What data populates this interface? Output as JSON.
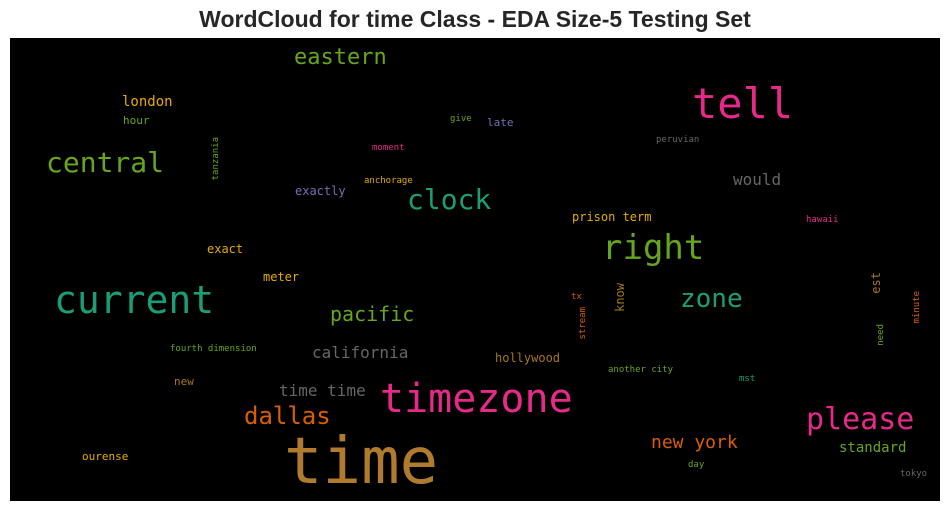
{
  "chart_data": {
    "type": "wordcloud",
    "title": "WordCloud for time Class - EDA Size-5 Testing Set",
    "background": "#000000",
    "words": [
      {
        "text": "time",
        "color": "#b07b2c",
        "orientation": "horizontal"
      },
      {
        "text": "current",
        "color": "#1b9e77",
        "orientation": "horizontal"
      },
      {
        "text": "timezone",
        "color": "#e7298a",
        "orientation": "horizontal"
      },
      {
        "text": "tell",
        "color": "#e7298a",
        "orientation": "horizontal"
      },
      {
        "text": "right",
        "color": "#66a61e",
        "orientation": "horizontal"
      },
      {
        "text": "please",
        "color": "#e7298a",
        "orientation": "horizontal"
      },
      {
        "text": "central",
        "color": "#66a61e",
        "orientation": "horizontal"
      },
      {
        "text": "clock",
        "color": "#1b9e77",
        "orientation": "horizontal"
      },
      {
        "text": "zone",
        "color": "#1b9e77",
        "orientation": "horizontal"
      },
      {
        "text": "dallas",
        "color": "#d95f02",
        "orientation": "horizontal"
      },
      {
        "text": "eastern",
        "color": "#66a61e",
        "orientation": "horizontal"
      },
      {
        "text": "pacific",
        "color": "#66a61e",
        "orientation": "horizontal"
      },
      {
        "text": "new york",
        "color": "#d95f02",
        "orientation": "horizontal"
      },
      {
        "text": "california",
        "color": "#666666",
        "orientation": "horizontal"
      },
      {
        "text": "time time",
        "color": "#666666",
        "orientation": "horizontal"
      },
      {
        "text": "would",
        "color": "#666666",
        "orientation": "horizontal"
      },
      {
        "text": "standard",
        "color": "#66a61e",
        "orientation": "horizontal"
      },
      {
        "text": "london",
        "color": "#e6ab02",
        "orientation": "horizontal"
      },
      {
        "text": "exactly",
        "color": "#7570b3",
        "orientation": "horizontal"
      },
      {
        "text": "prison term",
        "color": "#e6ab02",
        "orientation": "horizontal"
      },
      {
        "text": "hollywood",
        "color": "#a6761d",
        "orientation": "horizontal"
      },
      {
        "text": "exact",
        "color": "#e6ab02",
        "orientation": "horizontal"
      },
      {
        "text": "meter",
        "color": "#e6ab02",
        "orientation": "horizontal"
      },
      {
        "text": "ourense",
        "color": "#e6ab02",
        "orientation": "horizontal"
      },
      {
        "text": "new",
        "color": "#a6761d",
        "orientation": "horizontal"
      },
      {
        "text": "hour",
        "color": "#66a61e",
        "orientation": "horizontal"
      },
      {
        "text": "late",
        "color": "#7570b3",
        "orientation": "horizontal"
      },
      {
        "text": "know",
        "color": "#a6761d",
        "orientation": "vertical"
      },
      {
        "text": "est",
        "color": "#a6761d",
        "orientation": "vertical"
      },
      {
        "text": "anchorage",
        "color": "#e6ab02",
        "orientation": "horizontal"
      },
      {
        "text": "moment",
        "color": "#e7298a",
        "orientation": "horizontal"
      },
      {
        "text": "give",
        "color": "#66a61e",
        "orientation": "horizontal"
      },
      {
        "text": "peruvian",
        "color": "#666666",
        "orientation": "horizontal"
      },
      {
        "text": "hawaii",
        "color": "#e7298a",
        "orientation": "horizontal"
      },
      {
        "text": "tanzania",
        "color": "#66a61e",
        "orientation": "vertical"
      },
      {
        "text": "fourth dimension",
        "color": "#66a61e",
        "orientation": "horizontal"
      },
      {
        "text": "another city",
        "color": "#66a61e",
        "orientation": "horizontal"
      },
      {
        "text": "mst",
        "color": "#1b9e77",
        "orientation": "horizontal"
      },
      {
        "text": "tx",
        "color": "#d95f02",
        "orientation": "horizontal"
      },
      {
        "text": "stream",
        "color": "#d95f02",
        "orientation": "vertical"
      },
      {
        "text": "need",
        "color": "#66a61e",
        "orientation": "vertical"
      },
      {
        "text": "minute",
        "color": "#d95f02",
        "orientation": "vertical"
      },
      {
        "text": "day",
        "color": "#66a61e",
        "orientation": "horizontal"
      },
      {
        "text": "tokyo",
        "color": "#666666",
        "orientation": "horizontal"
      }
    ]
  }
}
